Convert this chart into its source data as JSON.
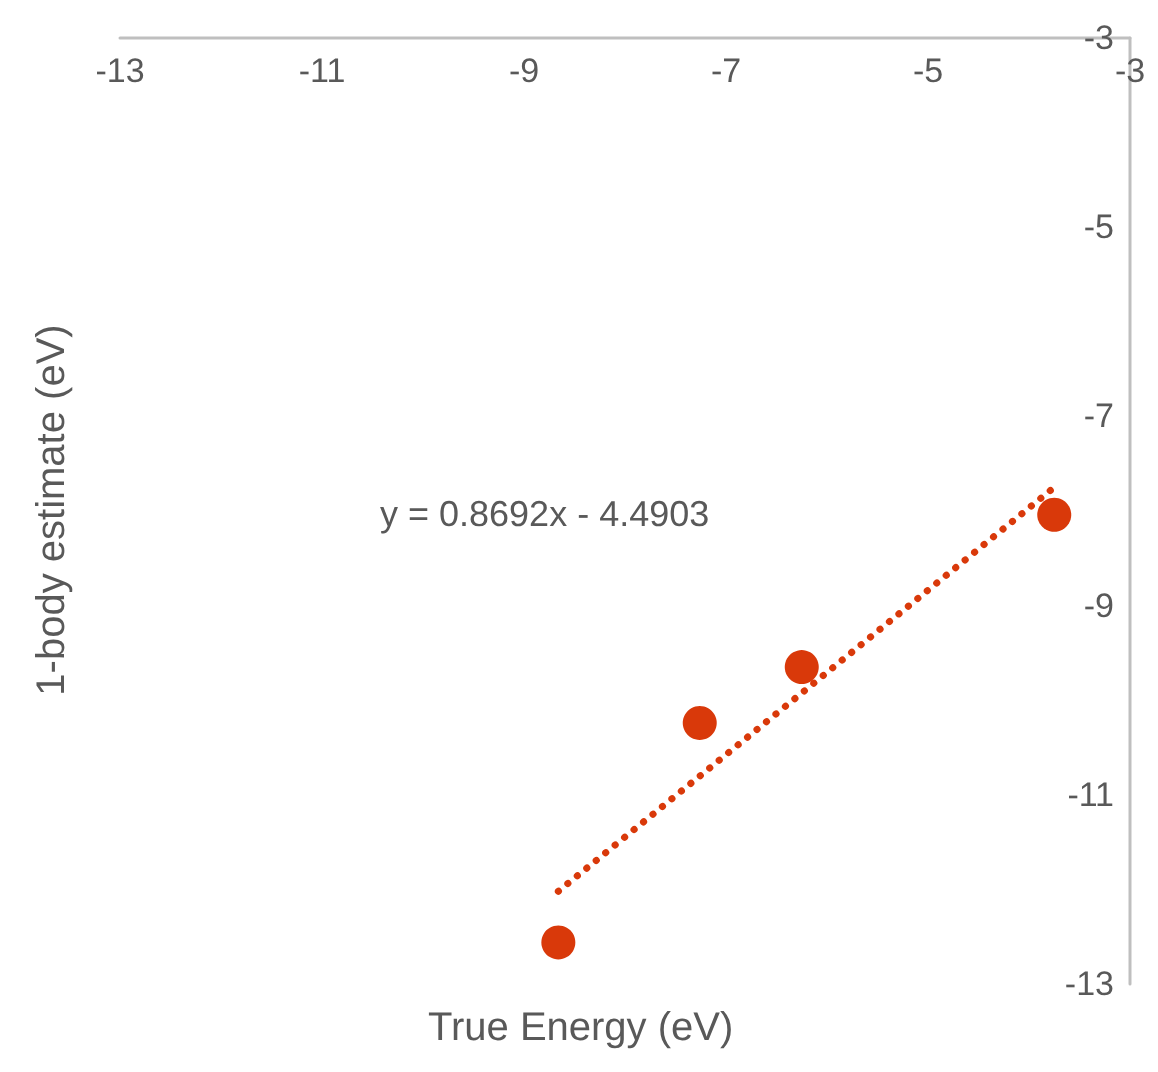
{
  "chart_data": {
    "type": "scatter",
    "xlabel": "True Energy (eV)",
    "ylabel": "1-body estimate (eV)",
    "annotations": [
      "y = 0.8692x - 4.4903"
    ],
    "xlim": [
      -13,
      -3
    ],
    "xticks": [
      -13,
      -11,
      -9,
      -7,
      -5,
      -3
    ],
    "ylim": [
      -13,
      -3
    ],
    "yticks": [
      -13,
      -11,
      -9,
      -7,
      -5,
      -3
    ],
    "grid": false,
    "marker": "circle",
    "series": [
      {
        "color": "#d9390a",
        "x": [
          -8.66,
          -7.26,
          -6.25,
          -3.75
        ],
        "values": [
          -12.56,
          -10.24,
          -9.65,
          -8.04
        ]
      },
      {
        "type": "line",
        "color": "#d9390a",
        "line_style": "dotted",
        "marker": "none",
        "x": [
          -8.66,
          -3.75
        ],
        "values": [
          -12.02,
          -7.75
        ]
      }
    ]
  }
}
